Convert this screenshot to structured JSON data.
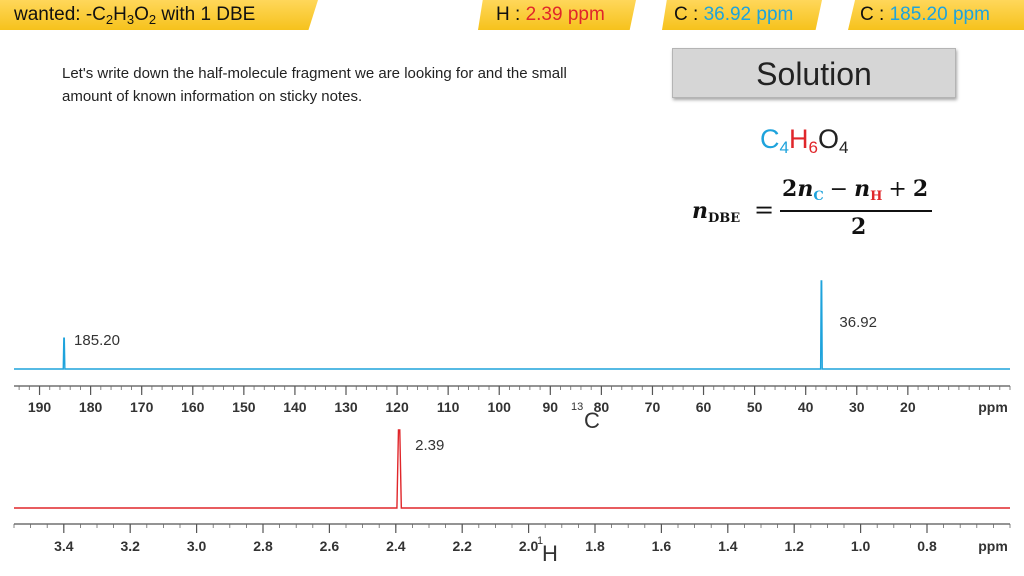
{
  "notes": {
    "wanted": {
      "prefix": "wanted: -C",
      "h_label": "H",
      "o_label": "O",
      "c_count": "2",
      "h_count": "3",
      "o_count": "2",
      "suffix": " with 1 DBE"
    },
    "h_shift": {
      "label": "H : ",
      "value": "2.39 ppm"
    },
    "c_shift_1": {
      "label": "C : ",
      "value": "36.92 ppm"
    },
    "c_shift_2": {
      "label": "C : ",
      "value": "185.20 ppm"
    }
  },
  "instruction": "Let's write down the half-molecule fragment we are looking for and the small amount of known information on sticky notes.",
  "solution_button": "Solution",
  "formula": {
    "c": "C",
    "c_n": "4",
    "h": "H",
    "h_n": "6",
    "o": "O",
    "o_n": "4"
  },
  "dbe_equation": {
    "lhs": "n",
    "lhs_sub": "DBE",
    "equals": "=",
    "num_coeff": "2",
    "num_n1": "n",
    "num_sub1": "C",
    "minus": "−",
    "num_n2": "n",
    "num_sub2": "H",
    "plus": "+",
    "num_const": "2",
    "denominator": "2"
  },
  "colors": {
    "c13": "#1ea3dc",
    "h1": "#e0262a",
    "note": "#f6c21c",
    "c_label": "#1ea3dc",
    "h_label": "#e0262a"
  },
  "chart_data": [
    {
      "type": "line",
      "title": "",
      "nucleus_mass": "13",
      "nucleus": "C",
      "xlabel": "ppm",
      "xlim": [
        195,
        0
      ],
      "x_reversed": true,
      "x_ticks": [
        190,
        180,
        170,
        160,
        150,
        140,
        130,
        120,
        110,
        100,
        90,
        80,
        70,
        60,
        50,
        40,
        30,
        20
      ],
      "x_tick_labels": [
        "190",
        "180",
        "170",
        "160",
        "150",
        "140",
        "130",
        "120",
        "110",
        "100",
        "90",
        "80",
        "70",
        "60",
        "50",
        "40",
        "30",
        "20"
      ],
      "peaks": [
        {
          "x": 185.2,
          "height": 0.35,
          "label": "185.20"
        },
        {
          "x": 36.92,
          "height": 1.0,
          "label": "36.92"
        }
      ],
      "color": "#1ea3dc"
    },
    {
      "type": "line",
      "title": "",
      "nucleus_mass": "1",
      "nucleus": "H",
      "xlabel": "ppm",
      "xlim": [
        3.55,
        0.55
      ],
      "x_reversed": true,
      "x_ticks": [
        3.4,
        3.2,
        3.0,
        2.8,
        2.6,
        2.4,
        2.2,
        2.0,
        1.8,
        1.6,
        1.4,
        1.2,
        1.0,
        0.8
      ],
      "x_tick_labels": [
        "3.4",
        "3.2",
        "3.0",
        "2.8",
        "2.6",
        "2.4",
        "2.2",
        "2.0",
        "1.8",
        "1.6",
        "1.4",
        "1.2",
        "1.0",
        "0.8"
      ],
      "peaks": [
        {
          "x": 2.39,
          "height": 1.0,
          "label": "2.39"
        }
      ],
      "color": "#e0262a"
    }
  ]
}
